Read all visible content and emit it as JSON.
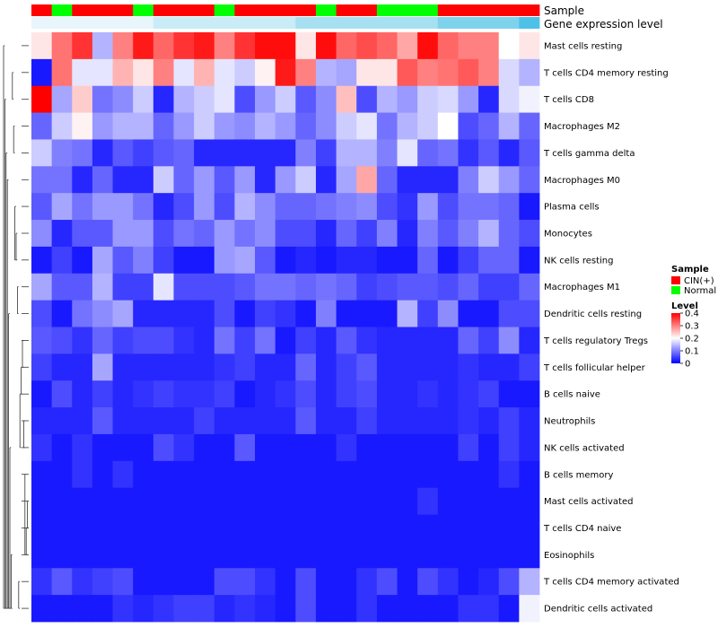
{
  "chart_data": {
    "type": "heatmap",
    "annotation_rows": [
      {
        "name": "Sample",
        "label": "Sample"
      },
      {
        "name": "Gene expression level",
        "label": "Gene expression level"
      }
    ],
    "sample_groups": [
      "C",
      "N",
      "C",
      "C",
      "C",
      "N",
      "C",
      "C",
      "C",
      "N",
      "C",
      "C",
      "C",
      "C",
      "N",
      "C",
      "C",
      "N",
      "N",
      "N",
      "C",
      "C",
      "C",
      "C",
      "C"
    ],
    "expression_band": [
      0,
      0,
      0,
      0,
      0,
      0,
      1,
      1,
      1,
      1,
      1,
      1,
      1,
      2,
      2,
      2,
      2,
      2,
      2,
      2,
      3,
      3,
      3,
      3,
      4
    ],
    "rows": [
      "Mast cells resting",
      "T cells CD4 memory resting",
      "T cells CD8",
      "Macrophages M2",
      "T cells gamma delta",
      "Macrophages M0",
      "Plasma cells",
      "Monocytes",
      "NK cells resting",
      "Macrophages M1",
      "Dendritic cells resting",
      "T cells regulatory  Tregs",
      "T cells follicular helper",
      "B cells naive",
      "Neutrophils",
      "NK cells activated",
      "B cells memory",
      "Mast cells activated",
      "T cells CD4 naive",
      "Eosinophils",
      "T cells CD4 memory activated",
      "Dendritic cells activated"
    ],
    "values": [
      [
        0.22,
        0.31,
        0.36,
        0.14,
        0.3,
        0.38,
        0.32,
        0.36,
        0.38,
        0.3,
        0.36,
        0.39,
        0.39,
        0.22,
        0.39,
        0.32,
        0.34,
        0.32,
        0.27,
        0.39,
        0.32,
        0.3,
        0.3,
        0.2,
        0.22
      ],
      [
        0.02,
        0.31,
        0.18,
        0.18,
        0.26,
        0.22,
        0.3,
        0.18,
        0.26,
        0.18,
        0.16,
        0.21,
        0.38,
        0.3,
        0.14,
        0.13,
        0.22,
        0.22,
        0.33,
        0.3,
        0.31,
        0.33,
        0.3,
        0.17,
        0.14
      ],
      [
        0.4,
        0.13,
        0.24,
        0.09,
        0.11,
        0.16,
        0.03,
        0.14,
        0.16,
        0.18,
        0.06,
        0.12,
        0.16,
        0.07,
        0.11,
        0.25,
        0.06,
        0.14,
        0.12,
        0.16,
        0.17,
        0.12,
        0.03,
        0.17,
        0.19
      ],
      [
        0.08,
        0.16,
        0.21,
        0.12,
        0.14,
        0.14,
        0.08,
        0.12,
        0.16,
        0.12,
        0.11,
        0.14,
        0.12,
        0.08,
        0.11,
        0.16,
        0.18,
        0.09,
        0.14,
        0.16,
        0.2,
        0.06,
        0.08,
        0.14,
        0.08
      ],
      [
        0.16,
        0.1,
        0.09,
        0.03,
        0.07,
        0.05,
        0.07,
        0.08,
        0.03,
        0.03,
        0.03,
        0.03,
        0.03,
        0.1,
        0.05,
        0.14,
        0.14,
        0.1,
        0.18,
        0.08,
        0.09,
        0.04,
        0.07,
        0.03,
        0.07
      ],
      [
        0.09,
        0.09,
        0.03,
        0.08,
        0.03,
        0.03,
        0.16,
        0.08,
        0.12,
        0.07,
        0.12,
        0.03,
        0.12,
        0.16,
        0.03,
        0.13,
        0.27,
        0.08,
        0.03,
        0.03,
        0.03,
        0.1,
        0.16,
        0.12,
        0.08
      ],
      [
        0.07,
        0.13,
        0.09,
        0.12,
        0.12,
        0.09,
        0.03,
        0.06,
        0.12,
        0.06,
        0.14,
        0.11,
        0.08,
        0.08,
        0.09,
        0.1,
        0.11,
        0.06,
        0.04,
        0.12,
        0.06,
        0.09,
        0.09,
        0.08,
        0.02
      ],
      [
        0.11,
        0.03,
        0.07,
        0.07,
        0.12,
        0.12,
        0.06,
        0.09,
        0.08,
        0.12,
        0.09,
        0.11,
        0.06,
        0.06,
        0.03,
        0.08,
        0.05,
        0.1,
        0.03,
        0.1,
        0.07,
        0.1,
        0.14,
        0.08,
        0.06
      ],
      [
        0.02,
        0.05,
        0.02,
        0.13,
        0.07,
        0.1,
        0.05,
        0.02,
        0.02,
        0.12,
        0.13,
        0.07,
        0.02,
        0.03,
        0.02,
        0.03,
        0.03,
        0.02,
        0.02,
        0.08,
        0.02,
        0.05,
        0.08,
        0.08,
        0.02
      ],
      [
        0.13,
        0.07,
        0.07,
        0.14,
        0.05,
        0.05,
        0.18,
        0.06,
        0.06,
        0.06,
        0.07,
        0.09,
        0.09,
        0.08,
        0.09,
        0.08,
        0.05,
        0.06,
        0.07,
        0.07,
        0.06,
        0.08,
        0.05,
        0.05,
        0.08
      ],
      [
        0.06,
        0.02,
        0.09,
        0.11,
        0.13,
        0.03,
        0.03,
        0.03,
        0.03,
        0.06,
        0.02,
        0.05,
        0.04,
        0.02,
        0.1,
        0.02,
        0.02,
        0.02,
        0.14,
        0.05,
        0.11,
        0.02,
        0.02,
        0.06,
        0.06
      ],
      [
        0.07,
        0.06,
        0.04,
        0.08,
        0.05,
        0.06,
        0.06,
        0.04,
        0.03,
        0.09,
        0.05,
        0.09,
        0.02,
        0.05,
        0.03,
        0.07,
        0.04,
        0.03,
        0.03,
        0.03,
        0.03,
        0.08,
        0.05,
        0.11,
        0.03
      ],
      [
        0.05,
        0.03,
        0.03,
        0.13,
        0.03,
        0.03,
        0.03,
        0.03,
        0.03,
        0.04,
        0.05,
        0.03,
        0.03,
        0.08,
        0.03,
        0.05,
        0.07,
        0.03,
        0.03,
        0.03,
        0.03,
        0.04,
        0.03,
        0.03,
        0.05
      ],
      [
        0.02,
        0.06,
        0.03,
        0.05,
        0.03,
        0.04,
        0.05,
        0.04,
        0.04,
        0.05,
        0.02,
        0.03,
        0.04,
        0.06,
        0.03,
        0.05,
        0.06,
        0.03,
        0.03,
        0.04,
        0.03,
        0.04,
        0.05,
        0.02,
        0.02
      ],
      [
        0.03,
        0.03,
        0.03,
        0.07,
        0.03,
        0.03,
        0.03,
        0.03,
        0.05,
        0.03,
        0.03,
        0.03,
        0.03,
        0.07,
        0.03,
        0.03,
        0.05,
        0.03,
        0.03,
        0.03,
        0.03,
        0.04,
        0.03,
        0.05,
        0.03
      ],
      [
        0.04,
        0.02,
        0.04,
        0.02,
        0.02,
        0.02,
        0.06,
        0.04,
        0.02,
        0.02,
        0.07,
        0.02,
        0.02,
        0.02,
        0.02,
        0.04,
        0.02,
        0.02,
        0.02,
        0.02,
        0.02,
        0.05,
        0.02,
        0.05,
        0.03
      ],
      [
        0.02,
        0.02,
        0.04,
        0.02,
        0.04,
        0.02,
        0.02,
        0.02,
        0.02,
        0.02,
        0.02,
        0.02,
        0.02,
        0.02,
        0.02,
        0.02,
        0.02,
        0.02,
        0.02,
        0.02,
        0.02,
        0.02,
        0.02,
        0.04,
        0.02
      ],
      [
        0.02,
        0.02,
        0.02,
        0.02,
        0.02,
        0.02,
        0.02,
        0.02,
        0.02,
        0.02,
        0.02,
        0.02,
        0.02,
        0.02,
        0.02,
        0.02,
        0.02,
        0.02,
        0.02,
        0.04,
        0.02,
        0.02,
        0.02,
        0.02,
        0.02
      ],
      [
        0.02,
        0.02,
        0.02,
        0.02,
        0.02,
        0.02,
        0.02,
        0.02,
        0.02,
        0.02,
        0.02,
        0.02,
        0.02,
        0.02,
        0.02,
        0.02,
        0.02,
        0.02,
        0.02,
        0.02,
        0.02,
        0.02,
        0.02,
        0.02,
        0.02
      ],
      [
        0.02,
        0.02,
        0.02,
        0.02,
        0.02,
        0.02,
        0.02,
        0.02,
        0.02,
        0.02,
        0.02,
        0.02,
        0.02,
        0.02,
        0.02,
        0.02,
        0.02,
        0.02,
        0.02,
        0.02,
        0.02,
        0.02,
        0.02,
        0.02,
        0.02
      ],
      [
        0.04,
        0.07,
        0.04,
        0.05,
        0.06,
        0.02,
        0.02,
        0.02,
        0.02,
        0.06,
        0.06,
        0.04,
        0.02,
        0.06,
        0.02,
        0.02,
        0.04,
        0.06,
        0.02,
        0.06,
        0.04,
        0.02,
        0.03,
        0.06,
        0.14
      ],
      [
        0.02,
        0.02,
        0.02,
        0.02,
        0.04,
        0.03,
        0.04,
        0.05,
        0.05,
        0.03,
        0.04,
        0.03,
        0.02,
        0.06,
        0.02,
        0.02,
        0.04,
        0.02,
        0.02,
        0.02,
        0.02,
        0.04,
        0.04,
        0.02,
        0.19
      ]
    ],
    "legend": {
      "sample_title": "Sample",
      "groups": [
        {
          "code": "C",
          "label": "CIN(+)",
          "color": "#ff0000"
        },
        {
          "code": "N",
          "label": "Normal",
          "color": "#00ff00"
        }
      ],
      "level_title": "Level",
      "level_range": [
        0,
        0.4
      ],
      "level_ticks": [
        {
          "value": 0.4,
          "label": "0.4"
        },
        {
          "value": 0.3,
          "label": "0.3"
        },
        {
          "value": 0.2,
          "label": "0.2"
        },
        {
          "value": 0.1,
          "label": "0.1"
        },
        {
          "value": 0,
          "label": "0"
        }
      ]
    },
    "colors": {
      "low": "#0000ff",
      "mid": "#ffffff",
      "high": "#ff0000"
    },
    "expression_band_colors": [
      "#e8f6fb",
      "#c9ecf6",
      "#a6e0f1",
      "#7fd2ec",
      "#4fc1e9"
    ],
    "dendrogram_merges": [
      [
        17,
        18
      ],
      [
        18,
        19
      ],
      [
        16,
        19
      ],
      [
        14,
        15
      ],
      [
        11,
        12
      ],
      [
        12,
        13
      ],
      [
        13,
        15
      ],
      [
        20,
        21
      ],
      [
        9,
        10
      ],
      [
        7,
        8
      ],
      [
        6,
        8
      ],
      [
        3,
        4
      ],
      [
        1,
        2
      ],
      [
        19,
        21
      ],
      [
        15,
        21
      ],
      [
        10,
        21
      ],
      [
        5,
        21
      ],
      [
        4,
        21
      ],
      [
        2,
        21
      ],
      [
        0,
        21
      ]
    ]
  }
}
